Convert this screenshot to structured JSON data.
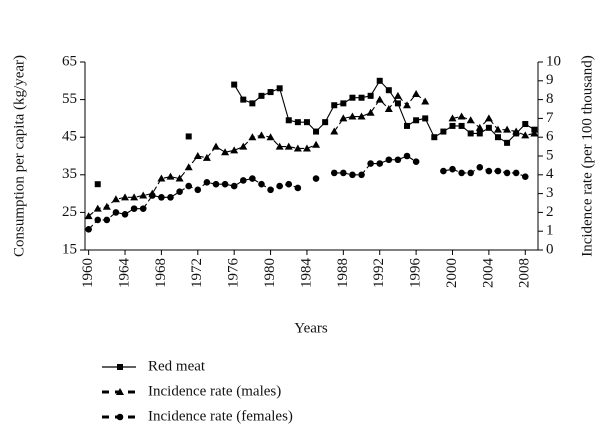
{
  "chart_data": {
    "type": "line",
    "ylabel": "Consumption per capita (kg/year)",
    "y2label": "Incidence rate (per 100 thousand)",
    "xlabel": "Years",
    "x": [
      1960,
      1961,
      1962,
      1963,
      1964,
      1965,
      1966,
      1967,
      1968,
      1969,
      1970,
      1971,
      1972,
      1973,
      1974,
      1975,
      1976,
      1977,
      1978,
      1979,
      1980,
      1981,
      1982,
      1983,
      1984,
      1985,
      1986,
      1987,
      1988,
      1989,
      1990,
      1991,
      1992,
      1993,
      1994,
      1995,
      1996,
      1997,
      1998,
      1999,
      2000,
      2001,
      2002,
      2003,
      2004,
      2005,
      2006,
      2007,
      2008,
      2009
    ],
    "series": [
      {
        "name": "Red meat",
        "color": "#000000",
        "line_style": "solid",
        "marker": "square",
        "values": [
          null,
          32.5,
          null,
          null,
          null,
          null,
          null,
          null,
          null,
          null,
          null,
          45.2,
          null,
          null,
          null,
          null,
          59,
          55,
          54,
          56,
          57,
          58,
          49.5,
          49,
          49,
          46.5,
          49,
          53.5,
          54,
          55.5,
          55.5,
          56,
          60,
          57.5,
          54,
          48,
          49.5,
          50,
          45,
          46.5,
          48,
          48,
          46,
          46,
          47.5,
          45,
          43.5,
          46,
          48.5,
          47
        ]
      },
      {
        "name": "Incidence rate (males)",
        "color": "#000000",
        "line_style": "dashed",
        "marker": "triangle",
        "axis": "y2",
        "values": [
          1.8,
          2.2,
          2.3,
          2.7,
          2.8,
          2.8,
          2.9,
          3.0,
          3.8,
          3.9,
          3.8,
          4.4,
          5.0,
          4.9,
          5.5,
          5.2,
          5.3,
          5.5,
          6.0,
          6.1,
          6.0,
          5.5,
          5.5,
          5.4,
          5.4,
          5.6,
          null,
          6.3,
          7.0,
          7.1,
          7.1,
          7.3,
          8.0,
          7.5,
          8.2,
          7.7,
          8.3,
          7.9,
          null,
          null,
          7.0,
          7.1,
          6.9,
          6.5,
          7.0,
          6.4,
          6.4,
          6.3,
          6.1,
          6.2
        ]
      },
      {
        "name": "Incidence rate (females)",
        "color": "#000000",
        "line_style": "dashed",
        "marker": "circle",
        "axis": "y2",
        "values": [
          1.1,
          1.6,
          1.6,
          2.0,
          1.9,
          2.2,
          2.2,
          2.9,
          2.8,
          2.8,
          3.1,
          3.4,
          3.2,
          3.6,
          3.5,
          3.5,
          3.4,
          3.7,
          3.8,
          3.5,
          3.2,
          3.4,
          3.5,
          3.3,
          null,
          3.8,
          null,
          4.1,
          4.1,
          4.0,
          4.0,
          4.6,
          4.6,
          4.8,
          4.8,
          5.0,
          4.7,
          null,
          null,
          4.2,
          4.3,
          4.1,
          4.1,
          4.4,
          4.2,
          4.2,
          4.1,
          4.1,
          3.9,
          null
        ]
      }
    ],
    "xlim": [
      1959.6,
      2009.4
    ],
    "xticks": [
      1960,
      1964,
      1968,
      1972,
      1976,
      1980,
      1984,
      1988,
      1992,
      1996,
      2000,
      2004,
      2008
    ],
    "ylim": [
      15,
      65
    ],
    "yticks": [
      15,
      25,
      35,
      45,
      55,
      65
    ],
    "y2lim": [
      0,
      10
    ],
    "y2ticks": [
      0,
      1,
      2,
      3,
      4,
      5,
      6,
      7,
      8,
      9,
      10
    ],
    "grid": false
  }
}
